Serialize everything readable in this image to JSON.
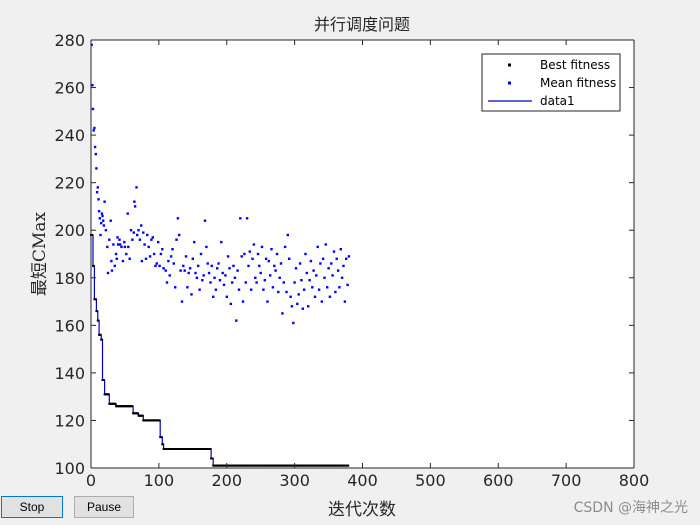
{
  "window": {
    "buttons": [
      {
        "label": "Stop"
      },
      {
        "label": "Pause"
      }
    ],
    "watermark": "CSDN @海神之光"
  },
  "chart_data": {
    "type": "scatter",
    "title": "并行调度问题",
    "xlabel": "迭代次数",
    "ylabel": "最短CMax",
    "xlim": [
      0,
      800
    ],
    "ylim": [
      100,
      280
    ],
    "xticks": [
      0,
      100,
      200,
      300,
      400,
      500,
      600,
      700,
      800
    ],
    "yticks": [
      100,
      120,
      140,
      160,
      180,
      200,
      220,
      240,
      260,
      280
    ],
    "grid": false,
    "legend_position": "top-right",
    "colors": {
      "best": "#000000",
      "mean": "#0000ff",
      "line": "#0000cc"
    },
    "series": [
      {
        "name": "Best fitness",
        "style": "points",
        "step_points": [
          [
            0,
            198
          ],
          [
            3,
            185
          ],
          [
            5,
            171
          ],
          [
            8,
            166
          ],
          [
            10,
            162
          ],
          [
            12,
            156
          ],
          [
            15,
            154
          ],
          [
            17,
            137
          ],
          [
            20,
            131
          ],
          [
            25,
            131
          ],
          [
            27,
            127
          ],
          [
            35,
            127
          ],
          [
            37,
            126
          ],
          [
            60,
            126
          ],
          [
            62,
            123
          ],
          [
            68,
            123
          ],
          [
            70,
            122
          ],
          [
            75,
            122
          ],
          [
            77,
            120
          ],
          [
            100,
            120
          ],
          [
            102,
            113
          ],
          [
            105,
            110
          ],
          [
            107,
            108
          ],
          [
            175,
            108
          ],
          [
            177,
            104
          ],
          [
            180,
            101
          ],
          [
            380,
            101
          ]
        ]
      },
      {
        "name": "Mean fitness",
        "style": "points",
        "values": [
          [
            1,
            278
          ],
          [
            2,
            261
          ],
          [
            3,
            251
          ],
          [
            4,
            242
          ],
          [
            5,
            243
          ],
          [
            6,
            235
          ],
          [
            7,
            232
          ],
          [
            8,
            226
          ],
          [
            9,
            216
          ],
          [
            10,
            218
          ],
          [
            11,
            213
          ],
          [
            12,
            208
          ],
          [
            13,
            205
          ],
          [
            14,
            198
          ],
          [
            15,
            203
          ],
          [
            16,
            207
          ],
          [
            17,
            206
          ],
          [
            18,
            204
          ],
          [
            19,
            202
          ],
          [
            20,
            212
          ],
          [
            22,
            200
          ],
          [
            24,
            193
          ],
          [
            25,
            182
          ],
          [
            27,
            196
          ],
          [
            29,
            204
          ],
          [
            30,
            187
          ],
          [
            31,
            183
          ],
          [
            33,
            194
          ],
          [
            35,
            185
          ],
          [
            37,
            190
          ],
          [
            38,
            188
          ],
          [
            39,
            197
          ],
          [
            40,
            194
          ],
          [
            42,
            196
          ],
          [
            43,
            194
          ],
          [
            45,
            193
          ],
          [
            47,
            187
          ],
          [
            49,
            195
          ],
          [
            50,
            193
          ],
          [
            52,
            190
          ],
          [
            54,
            207
          ],
          [
            55,
            193
          ],
          [
            57,
            188
          ],
          [
            59,
            200
          ],
          [
            61,
            196
          ],
          [
            63,
            199
          ],
          [
            64,
            212
          ],
          [
            65,
            210
          ],
          [
            67,
            218
          ],
          [
            68,
            198
          ],
          [
            70,
            200
          ],
          [
            72,
            196
          ],
          [
            74,
            202
          ],
          [
            75,
            187
          ],
          [
            77,
            199
          ],
          [
            79,
            194
          ],
          [
            81,
            188
          ],
          [
            83,
            198
          ],
          [
            85,
            193
          ],
          [
            87,
            189
          ],
          [
            89,
            196
          ],
          [
            91,
            197
          ],
          [
            93,
            190
          ],
          [
            95,
            185
          ],
          [
            97,
            186
          ],
          [
            99,
            195
          ],
          [
            101,
            185
          ],
          [
            103,
            190
          ],
          [
            105,
            192
          ],
          [
            107,
            184
          ],
          [
            110,
            183
          ],
          [
            112,
            178
          ],
          [
            114,
            187
          ],
          [
            116,
            181
          ],
          [
            118,
            189
          ],
          [
            120,
            192
          ],
          [
            122,
            186
          ],
          [
            124,
            176
          ],
          [
            126,
            196
          ],
          [
            128,
            205
          ],
          [
            130,
            198
          ],
          [
            132,
            183
          ],
          [
            134,
            170
          ],
          [
            136,
            185
          ],
          [
            138,
            183
          ],
          [
            140,
            189
          ],
          [
            142,
            176
          ],
          [
            144,
            182
          ],
          [
            146,
            184
          ],
          [
            148,
            173
          ],
          [
            150,
            188
          ],
          [
            152,
            195
          ],
          [
            154,
            182
          ],
          [
            156,
            180
          ],
          [
            158,
            185
          ],
          [
            160,
            175
          ],
          [
            162,
            190
          ],
          [
            164,
            179
          ],
          [
            166,
            181
          ],
          [
            168,
            204
          ],
          [
            170,
            193
          ],
          [
            172,
            186
          ],
          [
            174,
            182
          ],
          [
            176,
            178
          ],
          [
            178,
            185
          ],
          [
            180,
            172
          ],
          [
            182,
            180
          ],
          [
            184,
            175
          ],
          [
            186,
            184
          ],
          [
            188,
            186
          ],
          [
            190,
            179
          ],
          [
            192,
            195
          ],
          [
            194,
            182
          ],
          [
            196,
            177
          ],
          [
            198,
            181
          ],
          [
            200,
            172
          ],
          [
            202,
            189
          ],
          [
            204,
            184
          ],
          [
            206,
            169
          ],
          [
            208,
            178
          ],
          [
            210,
            185
          ],
          [
            212,
            180
          ],
          [
            214,
            162
          ],
          [
            216,
            183
          ],
          [
            218,
            175
          ],
          [
            220,
            205
          ],
          [
            222,
            189
          ],
          [
            224,
            170
          ],
          [
            226,
            190
          ],
          [
            228,
            178
          ],
          [
            230,
            205
          ],
          [
            232,
            185
          ],
          [
            234,
            191
          ],
          [
            236,
            175
          ],
          [
            238,
            188
          ],
          [
            240,
            194
          ],
          [
            242,
            180
          ],
          [
            244,
            178
          ],
          [
            246,
            190
          ],
          [
            248,
            185
          ],
          [
            250,
            182
          ],
          [
            252,
            193
          ],
          [
            254,
            175
          ],
          [
            256,
            179
          ],
          [
            258,
            188
          ],
          [
            260,
            170
          ],
          [
            262,
            187
          ],
          [
            264,
            181
          ],
          [
            266,
            192
          ],
          [
            268,
            176
          ],
          [
            270,
            185
          ],
          [
            272,
            183
          ],
          [
            274,
            190
          ],
          [
            276,
            174
          ],
          [
            278,
            180
          ],
          [
            280,
            186
          ],
          [
            282,
            165
          ],
          [
            284,
            178
          ],
          [
            286,
            193
          ],
          [
            288,
            174
          ],
          [
            290,
            198
          ],
          [
            292,
            188
          ],
          [
            294,
            172
          ],
          [
            296,
            168
          ],
          [
            298,
            161
          ],
          [
            300,
            178
          ],
          [
            302,
            184
          ],
          [
            304,
            169
          ],
          [
            306,
            173
          ],
          [
            308,
            186
          ],
          [
            310,
            179
          ],
          [
            312,
            167
          ],
          [
            314,
            175
          ],
          [
            316,
            190
          ],
          [
            318,
            182
          ],
          [
            320,
            168
          ],
          [
            322,
            179
          ],
          [
            324,
            187
          ],
          [
            326,
            176
          ],
          [
            328,
            183
          ],
          [
            330,
            172
          ],
          [
            332,
            181
          ],
          [
            334,
            193
          ],
          [
            336,
            175
          ],
          [
            338,
            186
          ],
          [
            340,
            170
          ],
          [
            342,
            188
          ],
          [
            344,
            180
          ],
          [
            346,
            194
          ],
          [
            348,
            176
          ],
          [
            350,
            184
          ],
          [
            352,
            172
          ],
          [
            354,
            186
          ],
          [
            356,
            181
          ],
          [
            358,
            191
          ],
          [
            360,
            174
          ],
          [
            362,
            188
          ],
          [
            364,
            183
          ],
          [
            366,
            176
          ],
          [
            368,
            192
          ],
          [
            370,
            180
          ],
          [
            372,
            185
          ],
          [
            374,
            170
          ],
          [
            376,
            188
          ],
          [
            378,
            177
          ],
          [
            380,
            189
          ]
        ]
      },
      {
        "name": "data1",
        "style": "line"
      }
    ]
  }
}
